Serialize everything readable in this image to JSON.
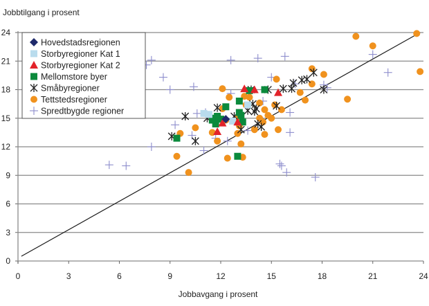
{
  "chart_data": {
    "type": "scatter",
    "title": "",
    "xlabel": "Jobbavgang i prosent",
    "ylabel": "Jobbtilgang i prosent",
    "xlim": [
      0,
      24
    ],
    "ylim": [
      0,
      24
    ],
    "xticks": [
      0,
      3,
      6,
      9,
      12,
      15,
      18,
      21,
      24
    ],
    "yticks": [
      0,
      3,
      6,
      9,
      12,
      15,
      18,
      21,
      24
    ],
    "x_tick_labels": [
      "0",
      "3",
      "6",
      "9",
      "12",
      "15",
      "18",
      "21",
      "24"
    ],
    "y_tick_labels": [
      "0",
      "3",
      "6",
      "9",
      "12",
      "15",
      "18",
      "21",
      "24"
    ],
    "grid": "horizontal",
    "legend_position": "top-left",
    "reference_line": {
      "from": [
        0.2,
        0.5
      ],
      "to": [
        23.8,
        24
      ]
    },
    "colors": {
      "Hovedstadsregionen": "#1f2a6b",
      "Storbyregioner Kat 1": "#b9dced",
      "Storbyregioner Kat 2": "#e2232a",
      "Mellomstore byer": "#0b8a3c",
      "Småbyregioner": "#222222",
      "Tettstedsregioner": "#f0921e",
      "Spredtbygde regioner": "#8c8ccc"
    },
    "series": [
      {
        "name": "Hovedstadsregionen",
        "marker": "diamond",
        "points": [
          [
            12.3,
            14.9
          ]
        ]
      },
      {
        "name": "Storbyregioner Kat 1",
        "marker": "square",
        "points": [
          [
            11.0,
            15.5
          ],
          [
            11.3,
            15.4
          ],
          [
            13.6,
            16.4
          ],
          [
            12.7,
            14.7
          ]
        ]
      },
      {
        "name": "Storbyregioner Kat 2",
        "marker": "triangle",
        "points": [
          [
            13.4,
            18.1
          ],
          [
            14.0,
            18.0
          ],
          [
            15.4,
            17.7
          ],
          [
            12.1,
            14.5
          ],
          [
            11.8,
            13.6
          ],
          [
            13.0,
            14.6
          ]
        ]
      },
      {
        "name": "Mellomstore byer",
        "marker": "square",
        "points": [
          [
            11.6,
            15.0
          ],
          [
            11.8,
            15.2
          ],
          [
            11.7,
            14.4
          ],
          [
            12.3,
            16.2
          ],
          [
            13.1,
            15.6
          ],
          [
            13.3,
            14.6
          ],
          [
            13.1,
            16.8
          ],
          [
            13.7,
            17.9
          ],
          [
            14.6,
            18.0
          ],
          [
            13.2,
            15.3
          ],
          [
            9.4,
            12.9
          ],
          [
            13.0,
            11.0
          ],
          [
            12.0,
            14.9
          ],
          [
            11.5,
            14.8
          ]
        ]
      },
      {
        "name": "Småbyregioner",
        "marker": "asterisk",
        "points": [
          [
            9.1,
            13.1
          ],
          [
            9.9,
            15.2
          ],
          [
            10.5,
            12.6
          ],
          [
            11.2,
            15.0
          ],
          [
            11.8,
            16.1
          ],
          [
            13.2,
            13.8
          ],
          [
            13.6,
            15.8
          ],
          [
            13.9,
            16.5
          ],
          [
            14.1,
            16.0
          ],
          [
            14.0,
            15.7
          ],
          [
            13.8,
            18.0
          ],
          [
            14.8,
            18.0
          ],
          [
            15.3,
            16.3
          ],
          [
            14.2,
            14.4
          ],
          [
            14.4,
            14.1
          ],
          [
            15.7,
            18.1
          ],
          [
            16.2,
            18.1
          ],
          [
            16.3,
            18.7
          ],
          [
            16.8,
            19.0
          ],
          [
            17.1,
            19.1
          ],
          [
            17.5,
            19.8
          ],
          [
            18.1,
            18.0
          ],
          [
            12.8,
            15.2
          ]
        ]
      },
      {
        "name": "Tettstedsregioner",
        "marker": "circle",
        "points": [
          [
            9.6,
            13.4
          ],
          [
            9.4,
            11.0
          ],
          [
            10.1,
            9.3
          ],
          [
            10.5,
            14.0
          ],
          [
            11.5,
            13.5
          ],
          [
            11.8,
            12.6
          ],
          [
            12.1,
            16.0
          ],
          [
            12.1,
            18.1
          ],
          [
            12.5,
            17.2
          ],
          [
            12.3,
            14.8
          ],
          [
            12.9,
            14.9
          ],
          [
            13.2,
            12.3
          ],
          [
            13.3,
            10.9
          ],
          [
            12.4,
            10.8
          ],
          [
            13.0,
            13.4
          ],
          [
            13.1,
            14.2
          ],
          [
            13.4,
            17.3
          ],
          [
            13.5,
            16.4
          ],
          [
            14.0,
            13.8
          ],
          [
            14.3,
            15.0
          ],
          [
            14.6,
            15.9
          ],
          [
            14.8,
            15.3
          ],
          [
            14.3,
            16.6
          ],
          [
            15.2,
            16.4
          ],
          [
            15.4,
            13.8
          ],
          [
            14.5,
            14.6
          ],
          [
            15.0,
            15.0
          ],
          [
            15.6,
            15.9
          ],
          [
            15.3,
            19.1
          ],
          [
            16.7,
            17.7
          ],
          [
            17.0,
            16.9
          ],
          [
            17.4,
            20.2
          ],
          [
            17.4,
            18.6
          ],
          [
            18.1,
            19.6
          ],
          [
            19.5,
            17.0
          ],
          [
            20.0,
            23.6
          ],
          [
            21.0,
            22.6
          ],
          [
            23.6,
            23.9
          ],
          [
            23.8,
            19.9
          ],
          [
            14.6,
            13.3
          ],
          [
            13.7,
            17.2
          ]
        ]
      },
      {
        "name": "Spredtbygde regioner",
        "marker": "plus",
        "points": [
          [
            5.4,
            10.1
          ],
          [
            6.4,
            10.0
          ],
          [
            7.6,
            20.6
          ],
          [
            7.9,
            21.1
          ],
          [
            7.9,
            12.0
          ],
          [
            9.0,
            18.0
          ],
          [
            9.3,
            14.3
          ],
          [
            10.4,
            18.3
          ],
          [
            10.6,
            15.5
          ],
          [
            11.0,
            11.6
          ],
          [
            11.7,
            12.9
          ],
          [
            12.4,
            12.6
          ],
          [
            12.6,
            21.1
          ],
          [
            14.2,
            21.3
          ],
          [
            15.8,
            21.5
          ],
          [
            16.4,
            18.6
          ],
          [
            16.1,
            15.6
          ],
          [
            15.0,
            19.3
          ],
          [
            15.5,
            10.2
          ],
          [
            15.6,
            10.0
          ],
          [
            15.9,
            9.3
          ],
          [
            16.1,
            13.5
          ],
          [
            17.6,
            8.8
          ],
          [
            18.1,
            18.5
          ],
          [
            18.3,
            18.2
          ],
          [
            21.0,
            21.7
          ],
          [
            21.9,
            19.8
          ],
          [
            13.6,
            13.7
          ],
          [
            14.5,
            16.8
          ],
          [
            12.6,
            17.6
          ],
          [
            11.1,
            15.6
          ],
          [
            10.3,
            13.2
          ],
          [
            8.6,
            19.3
          ]
        ]
      }
    ]
  }
}
